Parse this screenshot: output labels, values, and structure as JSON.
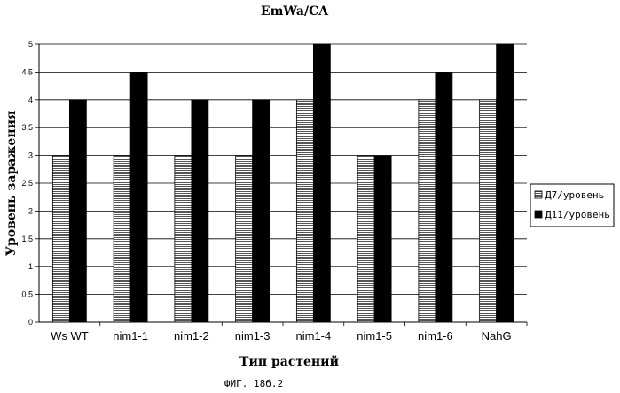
{
  "chart_data": {
    "type": "bar",
    "title": "EmWa/CA",
    "xlabel": "Тип растений",
    "ylabel": "Уровень заражения",
    "ylim": [
      0,
      5
    ],
    "yticks": [
      "0",
      "0.5",
      "1",
      "1.5",
      "2",
      "2.5",
      "3",
      "3.5",
      "4",
      "4.5",
      "5"
    ],
    "categories": [
      "Ws WT",
      "nim1-1",
      "nim1-2",
      "nim1-3",
      "nim1-4",
      "nim1-5",
      "nim1-6",
      "NahG"
    ],
    "series": [
      {
        "name": "Д7/уровень",
        "values": [
          3,
          3,
          3,
          3,
          4,
          3,
          4,
          4
        ],
        "color": "#9a9a9a",
        "pattern": "horizontal-hatch"
      },
      {
        "name": "Д11/уровень",
        "values": [
          4,
          4.5,
          4,
          4,
          5,
          3,
          4.5,
          5
        ],
        "color": "#000000",
        "pattern": "solid"
      }
    ],
    "grid": true,
    "legend": "right"
  },
  "caption": "ФИГ. 18б.2"
}
